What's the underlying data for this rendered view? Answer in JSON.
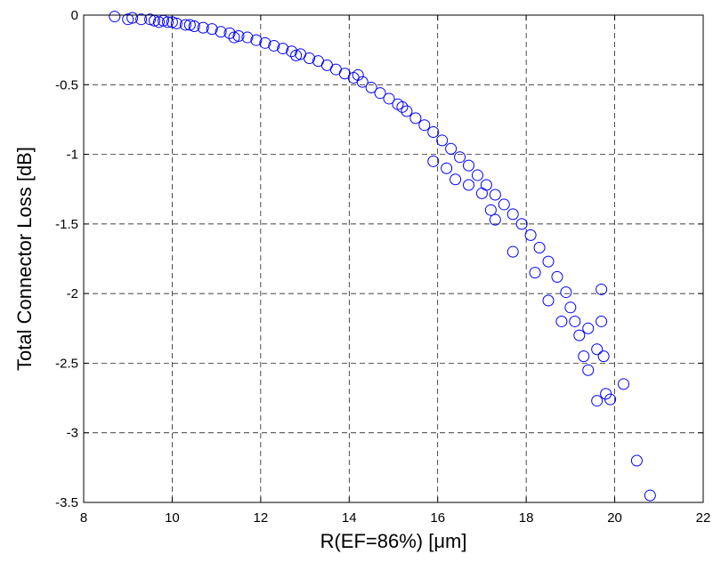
{
  "chart_data": {
    "type": "scatter",
    "title": "",
    "xlabel": "R(EF=86%) [μm]",
    "ylabel": "Total Connector Loss [dB]",
    "xlim": [
      8,
      22
    ],
    "ylim": [
      -3.5,
      0
    ],
    "xticks": [
      8,
      10,
      12,
      14,
      16,
      18,
      20,
      22
    ],
    "yticks": [
      0,
      -0.5,
      -1,
      -1.5,
      -2,
      -2.5,
      -3,
      -3.5
    ],
    "xtick_labels": [
      "8",
      "10",
      "12",
      "14",
      "16",
      "18",
      "20",
      "22"
    ],
    "ytick_labels": [
      "0",
      "-0.5",
      "-1",
      "-1.5",
      "-2",
      "-2.5",
      "-3",
      "-3.5"
    ],
    "grid": true,
    "grid_style": "dashed",
    "marker": "circle-open",
    "color": "#0000ff",
    "series": [
      {
        "points": [
          [
            8.7,
            -0.01
          ],
          [
            9.0,
            -0.03
          ],
          [
            9.1,
            -0.02
          ],
          [
            9.3,
            -0.03
          ],
          [
            9.5,
            -0.03
          ],
          [
            9.6,
            -0.04
          ],
          [
            9.8,
            -0.04
          ],
          [
            9.9,
            -0.05
          ],
          [
            10.0,
            -0.05
          ],
          [
            10.1,
            -0.06
          ],
          [
            10.3,
            -0.07
          ],
          [
            10.5,
            -0.08
          ],
          [
            10.7,
            -0.09
          ],
          [
            10.9,
            -0.1
          ],
          [
            11.1,
            -0.12
          ],
          [
            11.3,
            -0.13
          ],
          [
            11.5,
            -0.15
          ],
          [
            11.7,
            -0.16
          ],
          [
            11.9,
            -0.18
          ],
          [
            12.1,
            -0.2
          ],
          [
            12.3,
            -0.22
          ],
          [
            12.5,
            -0.24
          ],
          [
            12.7,
            -0.26
          ],
          [
            12.9,
            -0.28
          ],
          [
            13.1,
            -0.31
          ],
          [
            13.3,
            -0.33
          ],
          [
            13.5,
            -0.36
          ],
          [
            13.7,
            -0.39
          ],
          [
            13.9,
            -0.42
          ],
          [
            14.1,
            -0.45
          ],
          [
            14.3,
            -0.48
          ],
          [
            14.5,
            -0.52
          ],
          [
            14.7,
            -0.56
          ],
          [
            14.9,
            -0.6
          ],
          [
            15.1,
            -0.64
          ],
          [
            15.3,
            -0.69
          ],
          [
            15.5,
            -0.74
          ],
          [
            15.7,
            -0.79
          ],
          [
            15.9,
            -0.84
          ],
          [
            16.1,
            -0.9
          ],
          [
            16.3,
            -0.96
          ],
          [
            16.5,
            -1.02
          ],
          [
            16.7,
            -1.08
          ],
          [
            16.9,
            -1.15
          ],
          [
            17.1,
            -1.22
          ],
          [
            17.3,
            -1.29
          ],
          [
            17.5,
            -1.36
          ],
          [
            17.7,
            -1.43
          ],
          [
            17.9,
            -1.5
          ],
          [
            18.1,
            -1.58
          ],
          [
            18.3,
            -1.67
          ],
          [
            18.5,
            -1.77
          ],
          [
            18.7,
            -1.88
          ],
          [
            18.9,
            -1.99
          ],
          [
            19.0,
            -2.1
          ],
          [
            19.1,
            -2.2
          ],
          [
            19.2,
            -2.3
          ],
          [
            19.3,
            -2.45
          ],
          [
            19.4,
            -2.55
          ],
          [
            19.7,
            -1.97
          ],
          [
            19.7,
            -2.2
          ],
          [
            19.75,
            -2.45
          ],
          [
            19.8,
            -2.72
          ],
          [
            19.6,
            -2.77
          ],
          [
            19.9,
            -2.76
          ],
          [
            20.2,
            -2.65
          ],
          [
            20.5,
            -3.2
          ],
          [
            20.8,
            -3.45
          ],
          [
            15.9,
            -1.05
          ],
          [
            16.2,
            -1.1
          ],
          [
            16.4,
            -1.18
          ],
          [
            16.7,
            -1.22
          ],
          [
            17.0,
            -1.28
          ],
          [
            17.3,
            -1.47
          ],
          [
            17.7,
            -1.7
          ],
          [
            17.2,
            -1.4
          ],
          [
            18.2,
            -1.85
          ],
          [
            18.5,
            -2.05
          ],
          [
            18.8,
            -2.2
          ],
          [
            19.4,
            -2.25
          ],
          [
            19.6,
            -2.4
          ],
          [
            14.2,
            -0.43
          ],
          [
            15.2,
            -0.66
          ],
          [
            12.8,
            -0.29
          ],
          [
            11.4,
            -0.16
          ],
          [
            10.4,
            -0.07
          ],
          [
            9.7,
            -0.05
          ]
        ]
      }
    ]
  }
}
